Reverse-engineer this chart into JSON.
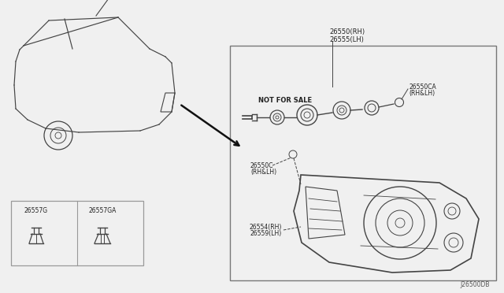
{
  "bg_color": "#f0f0f0",
  "diagram_id": "J26500DB",
  "labels": {
    "top_right_1": "26550(RH)",
    "top_right_2": "26555(LH)",
    "socket_label_1": "26550CA",
    "socket_label_2": "(RH&LH)",
    "not_for_sale": "NOT FOR SALE",
    "bulb_label_1": "26550C",
    "bulb_label_2": "(RH&LH)",
    "lamp_label_1": "26554(RH)",
    "lamp_label_2": "26559(LH)",
    "clip1": "26557G",
    "clip2": "26557GA"
  },
  "line_color": "#444444",
  "border_color": "#777777",
  "text_color": "#222222",
  "small_box_border": "#999999"
}
